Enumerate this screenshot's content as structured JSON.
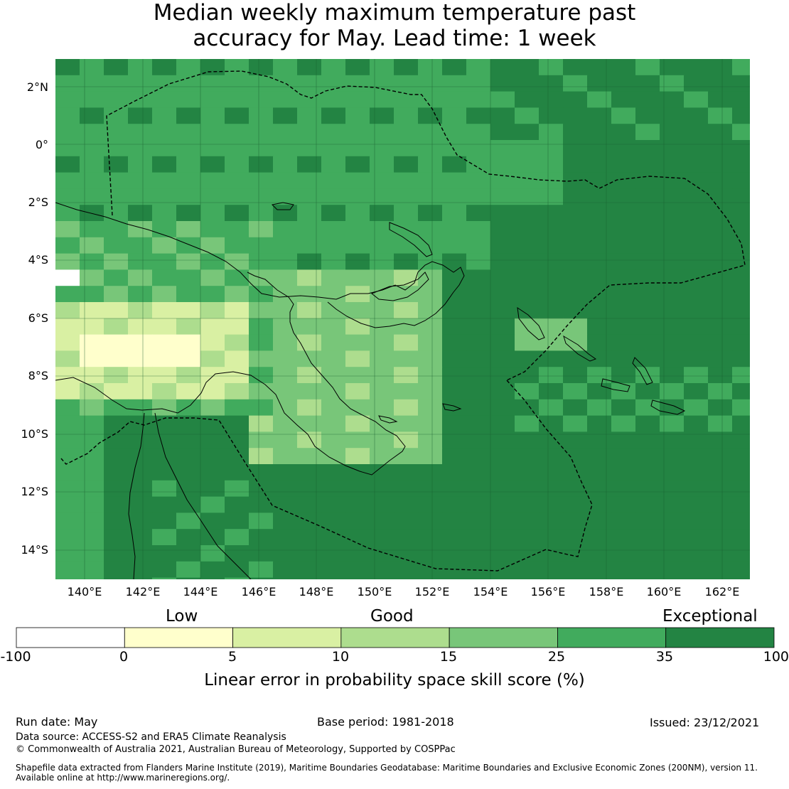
{
  "title": {
    "line1": "Median weekly maximum temperature past",
    "line2": "accuracy for May. Lead time: 1 week"
  },
  "map": {
    "lat_labels": [
      "2°N",
      "0°",
      "2°S",
      "4°S",
      "6°S",
      "8°S",
      "10°S",
      "12°S",
      "14°S"
    ],
    "lon_labels": [
      "140°E",
      "142°E",
      "144°E",
      "146°E",
      "148°E",
      "150°E",
      "152°E",
      "154°E",
      "156°E",
      "158°E",
      "160°E",
      "162°E"
    ],
    "colors": {
      "lt0": "#ffffff",
      "c0_5": "#ffffcc",
      "c5_10": "#d9f0a3",
      "c10_15": "#addd8e",
      "c15_25": "#78c679",
      "c25_35": "#41ab5d",
      "c35_100": "#238443",
      "coast": "#000000",
      "grid": "#1a5e30"
    }
  },
  "legend": {
    "category_low": "Low",
    "category_good": "Good",
    "category_exceptional": "Exceptional",
    "ticks": [
      "-100",
      "0",
      "5",
      "10",
      "15",
      "25",
      "35",
      "100"
    ],
    "colors": [
      "#ffffff",
      "#ffffcc",
      "#d9f0a3",
      "#addd8e",
      "#78c679",
      "#41ab5d",
      "#238443"
    ],
    "title": "Linear error in probability space skill score (%)"
  },
  "footer": {
    "run_date": "Run date: May",
    "base_period": "Base period: 1981-2018",
    "issued": "Issued: 23/12/2021",
    "data_source": "Data source: ACCESS-S2 and ERA5 Climate Reanalysis",
    "copyright": "© Commonwealth of Australia 2021, Australian Bureau of Meteorology, Supported by COSPPac",
    "shapefile_line1": "Shapefile data extracted from Flanders Marine Institute (2019), Maritime Boundaries Geodatabase: Maritime Boundaries and Exclusive Economic Zones (200NM), version 11.",
    "shapefile_line2": "Available online at http://www.marineregions.org/."
  }
}
